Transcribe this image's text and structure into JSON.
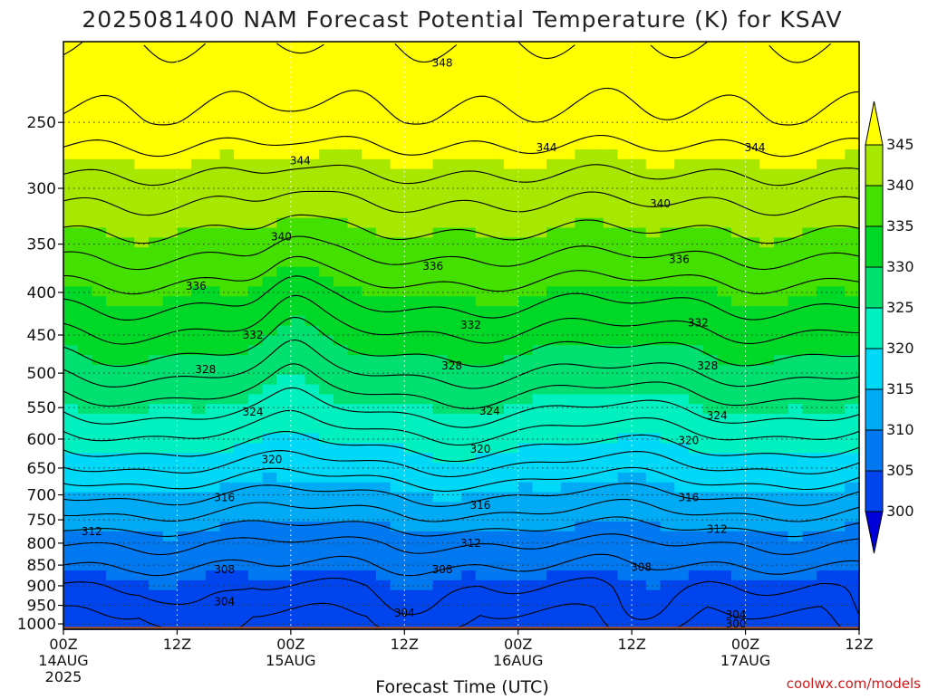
{
  "title": "2025081400 NAM Forecast Potential Temperature (K) for KSAV",
  "xlabel": "Forecast Time (UTC)",
  "credit": "coolwx.com/models",
  "chart_data": {
    "type": "heatmap",
    "title": "2025081400 NAM Forecast Potential Temperature (K) for KSAV",
    "xlabel": "Forecast Time (UTC)",
    "ylabel": "",
    "y_ticks": [
      "250",
      "300",
      "350",
      "400",
      "450",
      "500",
      "550",
      "600",
      "650",
      "700",
      "750",
      "800",
      "850",
      "900",
      "950",
      "1000"
    ],
    "x_ticks": [
      {
        "hour": 0,
        "lines": [
          "00Z",
          "14AUG",
          "2025"
        ]
      },
      {
        "hour": 12,
        "lines": [
          "12Z"
        ]
      },
      {
        "hour": 24,
        "lines": [
          "00Z",
          "15AUG"
        ]
      },
      {
        "hour": 36,
        "lines": [
          "12Z"
        ]
      },
      {
        "hour": 48,
        "lines": [
          "00Z",
          "16AUG"
        ]
      },
      {
        "hour": 60,
        "lines": [
          "12Z"
        ]
      },
      {
        "hour": 72,
        "lines": [
          "00Z",
          "17AUG"
        ]
      },
      {
        "hour": 84,
        "lines": [
          "12Z"
        ]
      }
    ],
    "xlim_hours": [
      0,
      84
    ],
    "ylim_hpa": [
      200,
      1015
    ],
    "y_scale": "log",
    "grid": true,
    "colorbar": {
      "labels": [
        "300",
        "305",
        "310",
        "315",
        "320",
        "325",
        "330",
        "335",
        "340",
        "345"
      ],
      "colors": [
        "#0000d8",
        "#0044ee",
        "#0078f0",
        "#00aaf4",
        "#00d8f8",
        "#00f0c0",
        "#00e070",
        "#00d828",
        "#44e000",
        "#a8e800",
        "#ffff00"
      ],
      "extend": "both"
    },
    "contour_labels": [
      {
        "value": "348",
        "hour": 40,
        "p": 212
      },
      {
        "value": "344",
        "hour": 25,
        "p": 278
      },
      {
        "value": "344",
        "hour": 51,
        "p": 268
      },
      {
        "value": "344",
        "hour": 73,
        "p": 268
      },
      {
        "value": "340",
        "hour": 23,
        "p": 343
      },
      {
        "value": "340",
        "hour": 63,
        "p": 313
      },
      {
        "value": "336",
        "hour": 14,
        "p": 393
      },
      {
        "value": "336",
        "hour": 39,
        "p": 372
      },
      {
        "value": "336",
        "hour": 65,
        "p": 365
      },
      {
        "value": "332",
        "hour": 20,
        "p": 450
      },
      {
        "value": "332",
        "hour": 43,
        "p": 438
      },
      {
        "value": "332",
        "hour": 67,
        "p": 435
      },
      {
        "value": "328",
        "hour": 15,
        "p": 495
      },
      {
        "value": "328",
        "hour": 41,
        "p": 490
      },
      {
        "value": "328",
        "hour": 68,
        "p": 490
      },
      {
        "value": "324",
        "hour": 20,
        "p": 557
      },
      {
        "value": "324",
        "hour": 45,
        "p": 555
      },
      {
        "value": "324",
        "hour": 69,
        "p": 562
      },
      {
        "value": "320",
        "hour": 22,
        "p": 635
      },
      {
        "value": "320",
        "hour": 44,
        "p": 617
      },
      {
        "value": "320",
        "hour": 66,
        "p": 602
      },
      {
        "value": "316",
        "hour": 17,
        "p": 705
      },
      {
        "value": "316",
        "hour": 44,
        "p": 720
      },
      {
        "value": "316",
        "hour": 66,
        "p": 705
      },
      {
        "value": "312",
        "hour": 3,
        "p": 775
      },
      {
        "value": "312",
        "hour": 43,
        "p": 800
      },
      {
        "value": "312",
        "hour": 69,
        "p": 770
      },
      {
        "value": "308",
        "hour": 17,
        "p": 860
      },
      {
        "value": "308",
        "hour": 40,
        "p": 860
      },
      {
        "value": "308",
        "hour": 61,
        "p": 855
      },
      {
        "value": "304",
        "hour": 17,
        "p": 940
      },
      {
        "value": "304",
        "hour": 36,
        "p": 970
      },
      {
        "value": "304",
        "hour": 71,
        "p": 975
      },
      {
        "value": "300",
        "hour": 71,
        "p": 1000
      }
    ]
  }
}
